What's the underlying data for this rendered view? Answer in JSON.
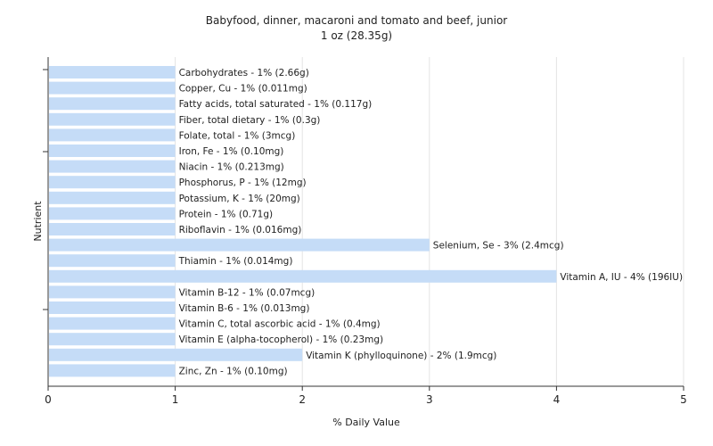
{
  "chart_data": {
    "type": "bar",
    "orientation": "horizontal",
    "title": "Babyfood, dinner, macaroni and tomato and beef, junior",
    "subtitle": "1 oz (28.35g)",
    "xlabel": "% Daily Value",
    "ylabel": "Nutrient",
    "xlim": [
      0,
      5
    ],
    "xticks": [
      "0",
      "1",
      "2",
      "3",
      "4",
      "5"
    ],
    "grid": true,
    "bar_color": "#c5dcf7",
    "categories": [
      "Carbohydrates",
      "Copper, Cu",
      "Fatty acids, total saturated",
      "Fiber, total dietary",
      "Folate, total",
      "Iron, Fe",
      "Niacin",
      "Phosphorus, P",
      "Potassium, K",
      "Protein",
      "Riboflavin",
      "Selenium, Se",
      "Thiamin",
      "Vitamin A, IU",
      "Vitamin B-12",
      "Vitamin B-6",
      "Vitamin C, total ascorbic acid",
      "Vitamin E (alpha-tocopherol)",
      "Vitamin K (phylloquinone)",
      "Zinc, Zn"
    ],
    "values": [
      1,
      1,
      1,
      1,
      1,
      1,
      1,
      1,
      1,
      1,
      1,
      3,
      1,
      4,
      1,
      1,
      1,
      1,
      2,
      1
    ],
    "labels": [
      "Carbohydrates - 1% (2.66g)",
      "Copper, Cu - 1% (0.011mg)",
      "Fatty acids, total saturated - 1% (0.117g)",
      "Fiber, total dietary - 1% (0.3g)",
      "Folate, total - 1% (3mcg)",
      "Iron, Fe - 1% (0.10mg)",
      "Niacin - 1% (0.213mg)",
      "Phosphorus, P - 1% (12mg)",
      "Potassium, K - 1% (20mg)",
      "Protein - 1% (0.71g)",
      "Riboflavin - 1% (0.016mg)",
      "Selenium, Se - 3% (2.4mcg)",
      "Thiamin - 1% (0.014mg)",
      "Vitamin A, IU - 4% (196IU)",
      "Vitamin B-12 - 1% (0.07mcg)",
      "Vitamin B-6 - 1% (0.013mg)",
      "Vitamin C, total ascorbic acid - 1% (0.4mg)",
      "Vitamin E (alpha-tocopherol) - 1% (0.23mg)",
      "Vitamin K (phylloquinone) - 2% (1.9mcg)",
      "Zinc, Zn - 1% (0.10mg)"
    ]
  }
}
